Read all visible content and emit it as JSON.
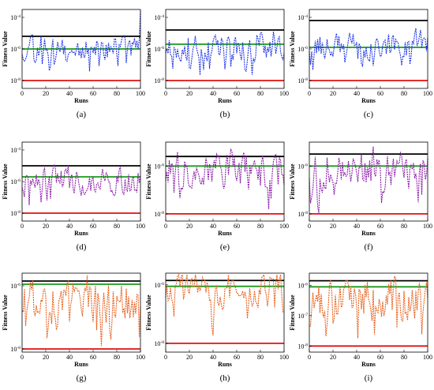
{
  "figure_title": "",
  "colors": {
    "blue_series": "#1f35e6",
    "purple_series": "#8b1fa8",
    "orange_series": "#e8601c",
    "black_line": "#000000",
    "green_line": "#1a9a1a",
    "red_line": "#e01010"
  },
  "chart_data": [
    {
      "type": "line",
      "panel": "a",
      "caption": "(a)",
      "xlabel": "Runs",
      "ylabel": "Fitness Value",
      "xlim": [
        0,
        100
      ],
      "ylim": [
        -8.5,
        -3.5
      ],
      "log_y": true,
      "grid": false,
      "legend": "none",
      "x_ticks": [
        0,
        20,
        40,
        60,
        80,
        100
      ],
      "y_ticks": [
        {
          "base": "10",
          "exp": "-4",
          "value": -4
        },
        {
          "base": "10",
          "exp": "-6",
          "value": -6
        },
        {
          "base": "10",
          "exp": "-8",
          "value": -8
        }
      ],
      "reference_lines": [
        {
          "color": "black",
          "log10_value": -5.2
        },
        {
          "color": "green",
          "log10_value": -6.0
        },
        {
          "color": "red",
          "log10_value": -8.0
        }
      ],
      "series": [
        {
          "color": "blue",
          "seed": 11,
          "base": -6.0,
          "amp": 1.0,
          "end_spike": -3.6
        }
      ]
    },
    {
      "type": "line",
      "panel": "b",
      "caption": "(b)",
      "xlabel": "Runs",
      "ylabel": "Fitness Value",
      "xlim": [
        0,
        100
      ],
      "ylim": [
        -8.5,
        -3.5
      ],
      "log_y": true,
      "grid": false,
      "legend": "none",
      "x_ticks": [
        0,
        20,
        40,
        60,
        80,
        100
      ],
      "y_ticks": [
        {
          "base": "10",
          "exp": "-4",
          "value": -4
        },
        {
          "base": "10",
          "exp": "-6",
          "value": -6
        },
        {
          "base": "10",
          "exp": "-8",
          "value": -8
        }
      ],
      "reference_lines": [
        {
          "color": "black",
          "log10_value": -4.8
        },
        {
          "color": "green",
          "log10_value": -5.7
        },
        {
          "color": "red",
          "log10_value": -8.0
        }
      ],
      "series": [
        {
          "color": "blue",
          "seed": 23,
          "base": -5.9,
          "amp": 1.1
        }
      ]
    },
    {
      "type": "line",
      "panel": "c",
      "caption": "(c)",
      "xlabel": "Runs",
      "ylabel": "Fitness Value",
      "xlim": [
        0,
        100
      ],
      "ylim": [
        -8.5,
        -3.5
      ],
      "log_y": true,
      "grid": false,
      "legend": "none",
      "x_ticks": [
        0,
        20,
        40,
        60,
        80,
        100
      ],
      "y_ticks": [
        {
          "base": "10",
          "exp": "-4",
          "value": -4
        },
        {
          "base": "10",
          "exp": "-6",
          "value": -6
        },
        {
          "base": "10",
          "exp": "-8",
          "value": -8
        }
      ],
      "reference_lines": [
        {
          "color": "black",
          "log10_value": -4.2
        },
        {
          "color": "green",
          "log10_value": -5.9
        },
        {
          "color": "red",
          "log10_value": -8.0
        }
      ],
      "series": [
        {
          "color": "blue",
          "seed": 37,
          "base": -5.8,
          "amp": 1.1
        }
      ]
    },
    {
      "type": "line",
      "panel": "d",
      "caption": "(d)",
      "xlabel": "Runs",
      "ylabel": "Fitness Value",
      "xlim": [
        0,
        100
      ],
      "ylim": [
        -8.5,
        -3.5
      ],
      "log_y": true,
      "grid": false,
      "legend": "none",
      "x_ticks": [
        0,
        20,
        40,
        60,
        80,
        100
      ],
      "y_ticks": [
        {
          "base": "10",
          "exp": "-4",
          "value": -4
        },
        {
          "base": "10",
          "exp": "-6",
          "value": -6
        },
        {
          "base": "10",
          "exp": "-8",
          "value": -8
        }
      ],
      "reference_lines": [
        {
          "color": "black",
          "log10_value": -5.0
        },
        {
          "color": "green",
          "log10_value": -5.7
        },
        {
          "color": "red",
          "log10_value": -8.0
        }
      ],
      "series": [
        {
          "color": "purple",
          "seed": 41,
          "base": -6.0,
          "amp": 1.2
        }
      ]
    },
    {
      "type": "line",
      "panel": "e",
      "caption": "(e)",
      "xlabel": "Runs",
      "ylabel": "Fitness Value",
      "xlim": [
        0,
        100
      ],
      "ylim": [
        -8.3,
        -5.0
      ],
      "log_y": true,
      "grid": false,
      "legend": "none",
      "x_ticks": [
        0,
        20,
        40,
        60,
        80,
        100
      ],
      "y_ticks": [
        {
          "base": "10",
          "exp": "-6",
          "value": -6
        },
        {
          "base": "10",
          "exp": "-8",
          "value": -8
        }
      ],
      "reference_lines": [
        {
          "color": "black",
          "log10_value": -5.6
        },
        {
          "color": "green",
          "log10_value": -6.0
        },
        {
          "color": "red",
          "log10_value": -8.0
        }
      ],
      "series": [
        {
          "color": "purple",
          "seed": 53,
          "base": -6.3,
          "amp": 1.0
        }
      ]
    },
    {
      "type": "line",
      "panel": "f",
      "caption": "(f)",
      "xlabel": "Runs",
      "ylabel": "Fitness Value",
      "xlim": [
        0,
        100
      ],
      "ylim": [
        -8.3,
        -5.0
      ],
      "log_y": true,
      "grid": false,
      "legend": "none",
      "x_ticks": [
        0,
        20,
        40,
        60,
        80,
        100
      ],
      "y_ticks": [
        {
          "base": "10",
          "exp": "-6",
          "value": -6
        },
        {
          "base": "10",
          "exp": "-8",
          "value": -8
        }
      ],
      "reference_lines": [
        {
          "color": "black",
          "log10_value": -5.5
        },
        {
          "color": "green",
          "log10_value": -6.0
        },
        {
          "color": "red",
          "log10_value": -8.0
        }
      ],
      "series": [
        {
          "color": "purple",
          "seed": 67,
          "base": -6.2,
          "amp": 1.0
        }
      ]
    },
    {
      "type": "line",
      "panel": "g",
      "caption": "(g)",
      "xlabel": "Runs",
      "ylabel": "Fitness Value",
      "xlim": [
        0,
        100
      ],
      "ylim": [
        -8.1,
        -5.6
      ],
      "log_y": true,
      "grid": false,
      "legend": "none",
      "x_ticks": [
        0,
        20,
        40,
        60,
        80,
        100
      ],
      "y_ticks": [
        {
          "base": "10",
          "exp": "-6",
          "value": -6
        },
        {
          "base": "10",
          "exp": "-8",
          "value": -8
        }
      ],
      "reference_lines": [
        {
          "color": "black",
          "log10_value": -5.85
        },
        {
          "color": "green",
          "log10_value": -5.95
        },
        {
          "color": "red",
          "log10_value": -8.0
        }
      ],
      "series": [
        {
          "color": "orange",
          "seed": 71,
          "base": -6.5,
          "amp": 0.9
        }
      ]
    },
    {
      "type": "line",
      "panel": "h",
      "caption": "(h)",
      "xlabel": "Runs",
      "ylabel": "Fitness Value",
      "xlim": [
        0,
        100
      ],
      "ylim": [
        -8.3,
        -5.6
      ],
      "log_y": true,
      "grid": false,
      "legend": "none",
      "x_ticks": [
        0,
        20,
        40,
        60,
        80,
        100
      ],
      "y_ticks": [
        {
          "base": "10",
          "exp": "-6",
          "value": -6
        },
        {
          "base": "10",
          "exp": "-8",
          "value": -8
        }
      ],
      "reference_lines": [
        {
          "color": "black",
          "log10_value": -5.85
        },
        {
          "color": "green",
          "log10_value": -6.05
        },
        {
          "color": "red",
          "log10_value": -8.0
        }
      ],
      "series": [
        {
          "color": "orange",
          "seed": 83,
          "base": -6.2,
          "amp": 0.8
        }
      ]
    },
    {
      "type": "line",
      "panel": "i",
      "caption": "(i)",
      "xlabel": "Runs",
      "ylabel": "Fitness Value",
      "xlim": [
        0,
        100
      ],
      "ylim": [
        -8.2,
        -5.6
      ],
      "log_y": true,
      "grid": false,
      "legend": "none",
      "x_ticks": [
        0,
        20,
        40,
        60,
        80,
        100
      ],
      "y_ticks": [
        {
          "base": "10",
          "exp": "-6",
          "value": -6
        },
        {
          "base": "10",
          "exp": "-7",
          "value": -7
        },
        {
          "base": "10",
          "exp": "-8",
          "value": -8
        }
      ],
      "reference_lines": [
        {
          "color": "black",
          "log10_value": -5.85
        },
        {
          "color": "green",
          "log10_value": -6.05
        },
        {
          "color": "red",
          "log10_value": -8.0
        }
      ],
      "series": [
        {
          "color": "orange",
          "seed": 97,
          "base": -6.5,
          "amp": 0.9
        }
      ]
    }
  ]
}
